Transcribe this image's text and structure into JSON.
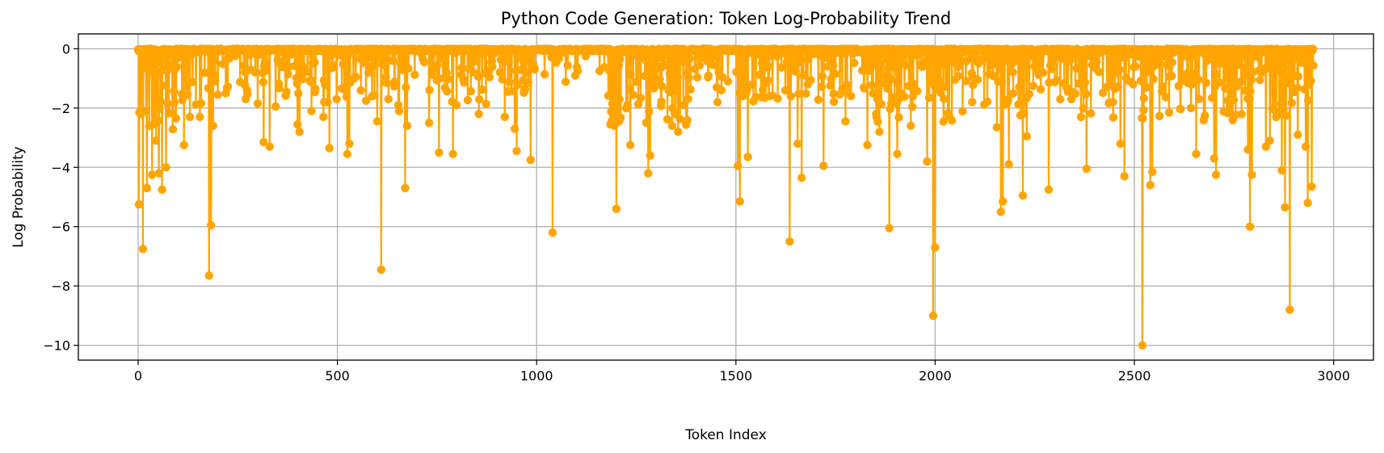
{
  "chart_data": {
    "type": "line",
    "title": "Python Code Generation: Token Log-Probability Trend",
    "xlabel": "Token Index",
    "ylabel": "Log Probability",
    "xlim": [
      -150,
      3100
    ],
    "ylim": [
      -10.5,
      0.5
    ],
    "xticks": [
      0,
      500,
      1000,
      1500,
      2000,
      2500,
      3000
    ],
    "yticks": [
      0,
      -2,
      -4,
      -6,
      -8,
      -10
    ],
    "xtick_labels": [
      "0",
      "500",
      "1000",
      "1500",
      "2000",
      "2500",
      "3000"
    ],
    "ytick_labels": [
      "0",
      "−2",
      "−4",
      "−6",
      "−8",
      "−10"
    ],
    "grid": true,
    "legend": "none",
    "color": "#ffa500",
    "marker": "circle",
    "series": [
      {
        "n_points": 2950,
        "baseline": -0.05,
        "notable_points": [
          {
            "x": 2,
            "y": -5.25
          },
          {
            "x": 8,
            "y": -2.2
          },
          {
            "x": 12,
            "y": -6.75
          },
          {
            "x": 22,
            "y": -4.7
          },
          {
            "x": 28,
            "y": -2.6
          },
          {
            "x": 35,
            "y": -4.25
          },
          {
            "x": 45,
            "y": -3.1
          },
          {
            "x": 52,
            "y": -4.2
          },
          {
            "x": 60,
            "y": -4.75
          },
          {
            "x": 70,
            "y": -4.0
          },
          {
            "x": 95,
            "y": -2.35
          },
          {
            "x": 115,
            "y": -3.25
          },
          {
            "x": 130,
            "y": -2.3
          },
          {
            "x": 155,
            "y": -2.3
          },
          {
            "x": 178,
            "y": -7.65
          },
          {
            "x": 183,
            "y": -5.95
          },
          {
            "x": 188,
            "y": -2.6
          },
          {
            "x": 200,
            "y": -1.55
          },
          {
            "x": 220,
            "y": -1.5
          },
          {
            "x": 270,
            "y": -1.7
          },
          {
            "x": 300,
            "y": -1.85
          },
          {
            "x": 315,
            "y": -3.15
          },
          {
            "x": 330,
            "y": -3.3
          },
          {
            "x": 345,
            "y": -1.95
          },
          {
            "x": 400,
            "y": -2.55
          },
          {
            "x": 405,
            "y": -2.8
          },
          {
            "x": 435,
            "y": -2.1
          },
          {
            "x": 465,
            "y": -2.3
          },
          {
            "x": 480,
            "y": -3.35
          },
          {
            "x": 525,
            "y": -3.55
          },
          {
            "x": 530,
            "y": -3.2
          },
          {
            "x": 600,
            "y": -2.45
          },
          {
            "x": 610,
            "y": -7.45
          },
          {
            "x": 655,
            "y": -2.1
          },
          {
            "x": 670,
            "y": -4.7
          },
          {
            "x": 675,
            "y": -2.6
          },
          {
            "x": 730,
            "y": -2.5
          },
          {
            "x": 755,
            "y": -3.5
          },
          {
            "x": 790,
            "y": -3.55
          },
          {
            "x": 855,
            "y": -2.2
          },
          {
            "x": 920,
            "y": -2.3
          },
          {
            "x": 945,
            "y": -2.7
          },
          {
            "x": 950,
            "y": -3.45
          },
          {
            "x": 985,
            "y": -3.75
          },
          {
            "x": 1040,
            "y": -6.2
          },
          {
            "x": 1185,
            "y": -2.55
          },
          {
            "x": 1200,
            "y": -5.4
          },
          {
            "x": 1235,
            "y": -3.25
          },
          {
            "x": 1280,
            "y": -4.2
          },
          {
            "x": 1285,
            "y": -3.6
          },
          {
            "x": 1340,
            "y": -2.6
          },
          {
            "x": 1355,
            "y": -2.8
          },
          {
            "x": 1505,
            "y": -3.95
          },
          {
            "x": 1510,
            "y": -5.15
          },
          {
            "x": 1530,
            "y": -3.65
          },
          {
            "x": 1635,
            "y": -6.5
          },
          {
            "x": 1655,
            "y": -3.2
          },
          {
            "x": 1665,
            "y": -4.35
          },
          {
            "x": 1720,
            "y": -3.95
          },
          {
            "x": 1775,
            "y": -2.45
          },
          {
            "x": 1830,
            "y": -3.25
          },
          {
            "x": 1860,
            "y": -2.8
          },
          {
            "x": 1885,
            "y": -6.05
          },
          {
            "x": 1905,
            "y": -3.55
          },
          {
            "x": 1980,
            "y": -3.8
          },
          {
            "x": 1995,
            "y": -9.0
          },
          {
            "x": 2000,
            "y": -6.7
          },
          {
            "x": 2155,
            "y": -2.65
          },
          {
            "x": 2165,
            "y": -5.5
          },
          {
            "x": 2170,
            "y": -5.15
          },
          {
            "x": 2185,
            "y": -3.9
          },
          {
            "x": 2220,
            "y": -4.95
          },
          {
            "x": 2230,
            "y": -2.95
          },
          {
            "x": 2285,
            "y": -4.75
          },
          {
            "x": 2380,
            "y": -4.05
          },
          {
            "x": 2465,
            "y": -3.2
          },
          {
            "x": 2475,
            "y": -4.3
          },
          {
            "x": 2520,
            "y": -10.0
          },
          {
            "x": 2540,
            "y": -4.6
          },
          {
            "x": 2545,
            "y": -4.15
          },
          {
            "x": 2655,
            "y": -3.55
          },
          {
            "x": 2700,
            "y": -3.7
          },
          {
            "x": 2705,
            "y": -4.25
          },
          {
            "x": 2785,
            "y": -3.4
          },
          {
            "x": 2790,
            "y": -6.0
          },
          {
            "x": 2795,
            "y": -4.25
          },
          {
            "x": 2830,
            "y": -3.3
          },
          {
            "x": 2840,
            "y": -3.1
          },
          {
            "x": 2870,
            "y": -4.1
          },
          {
            "x": 2878,
            "y": -5.35
          },
          {
            "x": 2890,
            "y": -8.8
          },
          {
            "x": 2910,
            "y": -2.9
          },
          {
            "x": 2930,
            "y": -3.3
          },
          {
            "x": 2935,
            "y": -5.2
          },
          {
            "x": 2945,
            "y": -4.65
          }
        ],
        "dense_regions": [
          {
            "x_start": 0,
            "x_end": 100,
            "min_y": -2.8,
            "density": 0.55
          },
          {
            "x_start": 100,
            "x_end": 1000,
            "min_y": -1.9,
            "density": 0.3
          },
          {
            "x_start": 1000,
            "x_end": 1180,
            "min_y": -1.2,
            "density": 0.1
          },
          {
            "x_start": 1180,
            "x_end": 1380,
            "min_y": -2.6,
            "density": 0.55
          },
          {
            "x_start": 1380,
            "x_end": 1850,
            "min_y": -1.8,
            "density": 0.3
          },
          {
            "x_start": 1850,
            "x_end": 2050,
            "min_y": -2.6,
            "density": 0.5
          },
          {
            "x_start": 2050,
            "x_end": 2500,
            "min_y": -2.3,
            "density": 0.35
          },
          {
            "x_start": 2500,
            "x_end": 2950,
            "min_y": -2.4,
            "density": 0.45
          }
        ]
      }
    ]
  }
}
